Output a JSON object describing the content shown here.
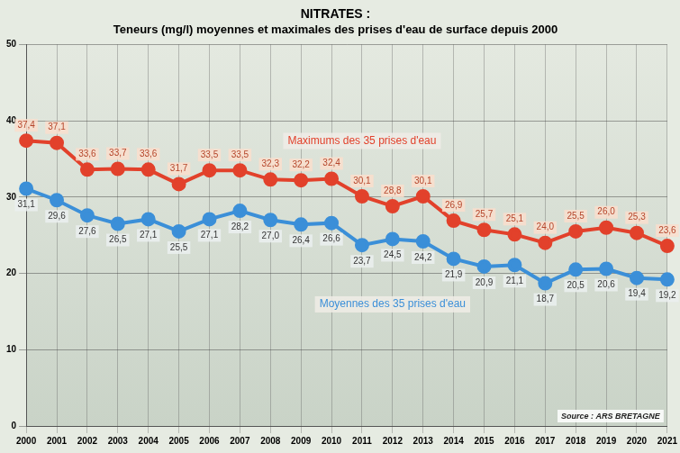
{
  "chart_data": {
    "type": "line",
    "title": "NITRATES :",
    "subtitle": "Teneurs (mg/l) moyennes et maximales des prises d'eau de surface depuis 2000",
    "categories": [
      "2000",
      "2001",
      "2002",
      "2003",
      "2004",
      "2005",
      "2006",
      "2007",
      "2008",
      "2009",
      "2010",
      "2011",
      "2012",
      "2013",
      "2014",
      "2015",
      "2016",
      "2017",
      "2018",
      "2019",
      "2020",
      "2021"
    ],
    "series": [
      {
        "name": "Maximums des 35 prises d'eau",
        "color": "#e2412b",
        "values": [
          37.4,
          37.1,
          33.6,
          33.7,
          33.6,
          31.7,
          33.5,
          33.5,
          32.3,
          32.2,
          32.4,
          30.1,
          28.8,
          30.1,
          26.9,
          25.7,
          25.1,
          24.0,
          25.5,
          26.0,
          25.3,
          23.6
        ],
        "value_labels": [
          "37,4",
          "37,1",
          "33,6",
          "33,7",
          "33,6",
          "31,7",
          "33,5",
          "33,5",
          "32,3",
          "32,2",
          "32,4",
          "30,1",
          "28,8",
          "30,1",
          "26,9",
          "25,7",
          "25,1",
          "24,0",
          "25,5",
          "26,0",
          "25,3",
          "23,6"
        ]
      },
      {
        "name": "Moyennes des 35 prises d'eau",
        "color": "#3b8fd8",
        "values": [
          31.1,
          29.6,
          27.6,
          26.5,
          27.1,
          25.5,
          27.1,
          28.2,
          27.0,
          26.4,
          26.6,
          23.7,
          24.5,
          24.2,
          21.9,
          20.9,
          21.1,
          18.7,
          20.5,
          20.6,
          19.4,
          19.2
        ],
        "value_labels": [
          "31,1",
          "29,6",
          "27,6",
          "26,5",
          "27,1",
          "25,5",
          "27,1",
          "28,2",
          "27,0",
          "26,4",
          "26,6",
          "23,7",
          "24,5",
          "24,2",
          "21,9",
          "20,9",
          "21,1",
          "18,7",
          "20,5",
          "20,6",
          "19,4",
          "19,2"
        ]
      }
    ],
    "ylim": [
      0,
      50
    ],
    "yticks": [
      0,
      10,
      20,
      30,
      40,
      50
    ],
    "grid": true,
    "data_labels": true,
    "marker": "circle",
    "annotations": [
      "Source : ARS BRETAGNE"
    ]
  }
}
